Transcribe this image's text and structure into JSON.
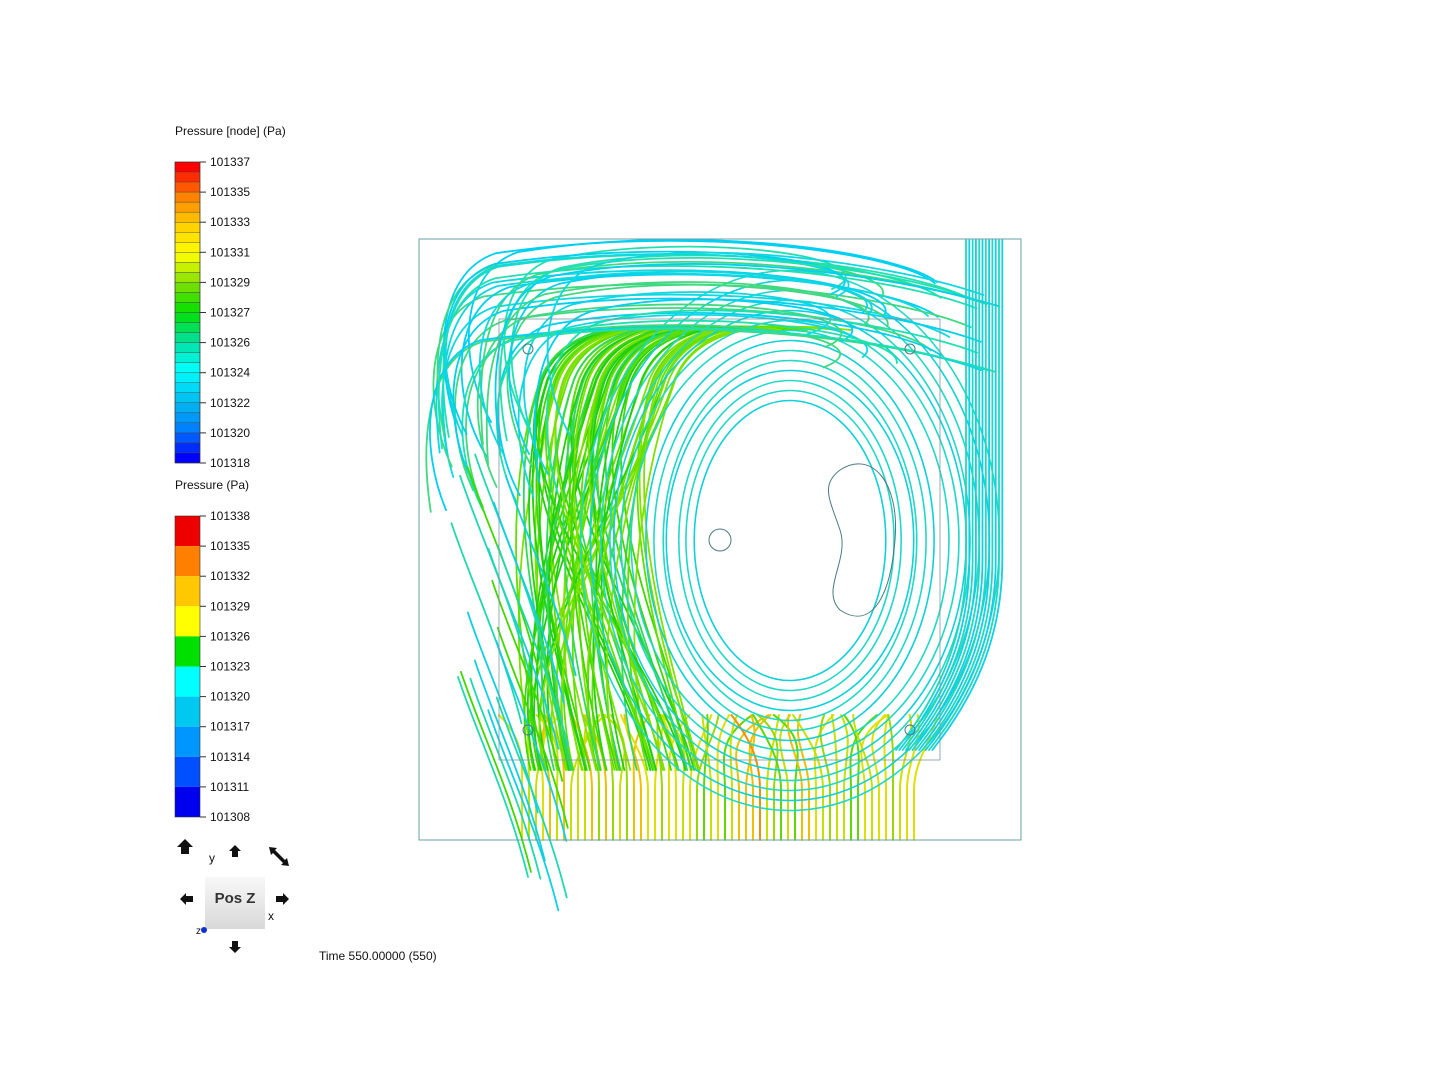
{
  "legends": [
    {
      "title": "Pressure [node] (Pa)",
      "labels": [
        101337,
        101335,
        101333,
        101331,
        101329,
        101327,
        101326,
        101324,
        101322,
        101320,
        101318
      ],
      "colors": [
        "#ff0000",
        "#ff8000",
        "#ffd000",
        "#ffff00",
        "#80e000",
        "#00e000",
        "#00e0a0",
        "#00ffff",
        "#00c0f0",
        "#0080ff",
        "#0000ff"
      ]
    },
    {
      "title": "Pressure (Pa)",
      "labels": [
        101338,
        101335,
        101332,
        101329,
        101326,
        101323,
        101320,
        101317,
        101314,
        101311,
        101308
      ],
      "colors": [
        "#ee0000",
        "#ff7f00",
        "#ffc800",
        "#ffff00",
        "#00e000",
        "#00ffff",
        "#00c8f0",
        "#0096ff",
        "#0050ff",
        "#0000ee"
      ]
    }
  ],
  "view_cube": {
    "face": "Pos Z",
    "axis_y": "y",
    "axis_x": "x",
    "axis_z": "z"
  },
  "time": "Time 550.00000 (550)"
}
